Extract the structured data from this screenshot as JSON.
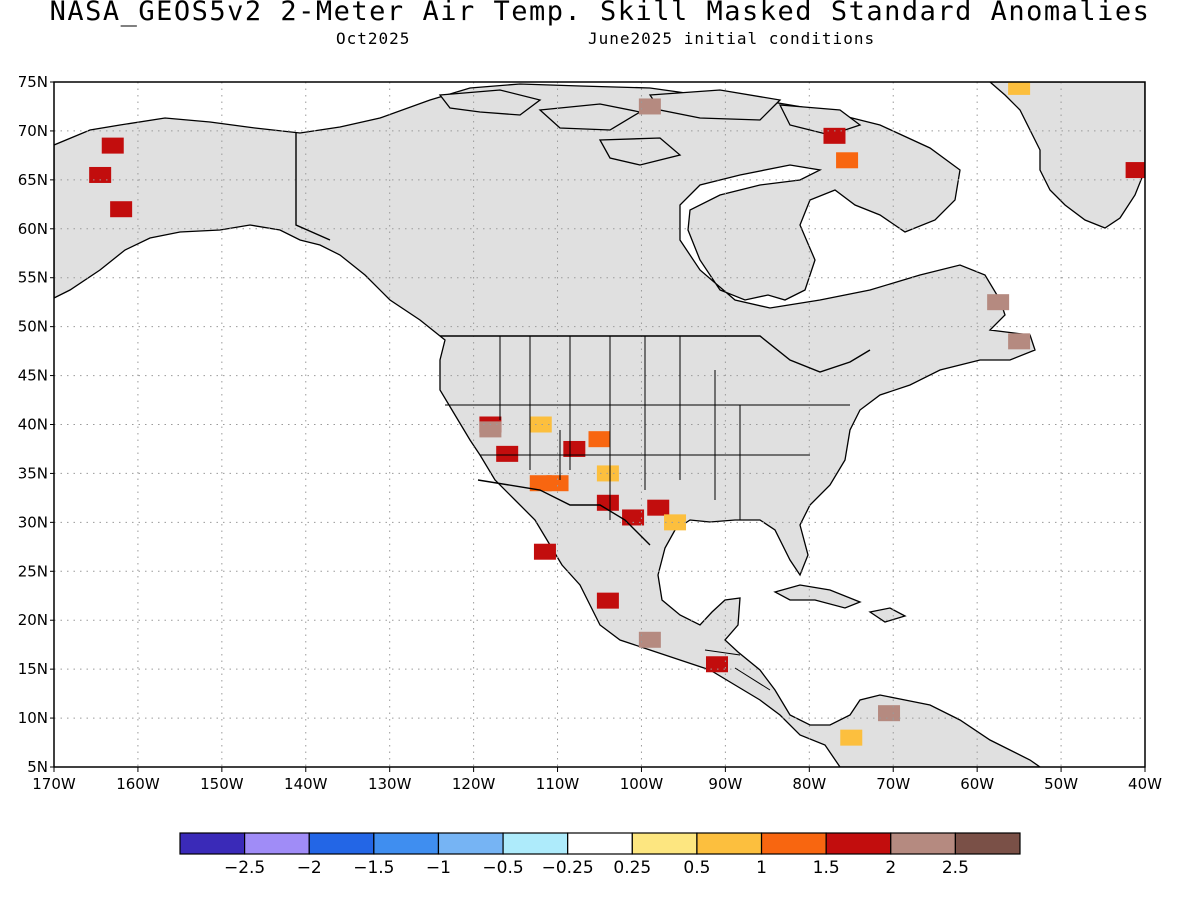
{
  "header": {
    "title": "NASA_GEOS5v2 2-Meter Air Temp. Skill Masked Standard Anomalies",
    "month": "Oct2025",
    "initial_conditions": "June2025 initial conditions"
  },
  "axes": {
    "lon_labels": [
      "170W",
      "160W",
      "150W",
      "140W",
      "130W",
      "120W",
      "110W",
      "100W",
      "90W",
      "80W",
      "70W",
      "60W",
      "50W",
      "40W"
    ],
    "lat_labels": [
      "75N",
      "70N",
      "65N",
      "60N",
      "55N",
      "50N",
      "45N",
      "40N",
      "35N",
      "30N",
      "25N",
      "20N",
      "15N",
      "10N",
      "5N"
    ],
    "lon_range": [
      -170,
      -40
    ],
    "lat_range": [
      5,
      75
    ]
  },
  "colorbar": {
    "labels": [
      "-2.5",
      "-2",
      "-1.5",
      "-1",
      "-0.5",
      "-0.25",
      "0.25",
      "0.5",
      "1",
      "1.5",
      "2",
      "2.5"
    ],
    "colors": [
      "#3a2ab8",
      "#a08cf7",
      "#2366e6",
      "#3f8ef0",
      "#76b4f4",
      "#aeebfb",
      "#ffffff",
      "#fde680",
      "#fcbf3e",
      "#f86610",
      "#c20d0d",
      "#b58a80",
      "#7a5047"
    ]
  },
  "map_colors": {
    "land_masked": "#e0e0e0",
    "ocean": "#ffffff",
    "coast": "#000000"
  },
  "anomaly_patches": [
    {
      "lon": -163,
      "lat": 68.5,
      "level": "1.5"
    },
    {
      "lon": -164.5,
      "lat": 65.5,
      "level": "1.5"
    },
    {
      "lon": -162,
      "lat": 62,
      "level": "1.5"
    },
    {
      "lon": -99,
      "lat": 72.5,
      "level": "2"
    },
    {
      "lon": -77,
      "lat": 69.5,
      "level": "1.5"
    },
    {
      "lon": -75.5,
      "lat": 67,
      "level": "1"
    },
    {
      "lon": -55,
      "lat": 74.5,
      "level": "0.5"
    },
    {
      "lon": -41,
      "lat": 66,
      "level": "1.5"
    },
    {
      "lon": -57.5,
      "lat": 52.5,
      "level": "2.5"
    },
    {
      "lon": -55,
      "lat": 48.5,
      "level": "2.5"
    },
    {
      "lon": -118,
      "lat": 40,
      "level": "1.5"
    },
    {
      "lon": -118,
      "lat": 39.5,
      "level": "2"
    },
    {
      "lon": -116,
      "lat": 37,
      "level": "1.5"
    },
    {
      "lon": -112,
      "lat": 40,
      "level": "0.5"
    },
    {
      "lon": -108,
      "lat": 37.5,
      "level": "1.5"
    },
    {
      "lon": -105,
      "lat": 38.5,
      "level": "1"
    },
    {
      "lon": -104,
      "lat": 35,
      "level": "0.5"
    },
    {
      "lon": -104,
      "lat": 32,
      "level": "1.5"
    },
    {
      "lon": -101,
      "lat": 30.5,
      "level": "1.5"
    },
    {
      "lon": -98,
      "lat": 31.5,
      "level": "1.5"
    },
    {
      "lon": -96,
      "lat": 30,
      "level": "0.5"
    },
    {
      "lon": -110,
      "lat": 34,
      "level": "1"
    },
    {
      "lon": -112,
      "lat": 34,
      "level": "1"
    },
    {
      "lon": -111.5,
      "lat": 27,
      "level": "1.5"
    },
    {
      "lon": -104,
      "lat": 22,
      "level": "1.5"
    },
    {
      "lon": -99,
      "lat": 18,
      "level": "2.5"
    },
    {
      "lon": -91,
      "lat": 15.5,
      "level": "1.5"
    },
    {
      "lon": -75,
      "lat": 8,
      "level": "0.5"
    },
    {
      "lon": -70.5,
      "lat": 10.5,
      "level": "2"
    }
  ]
}
